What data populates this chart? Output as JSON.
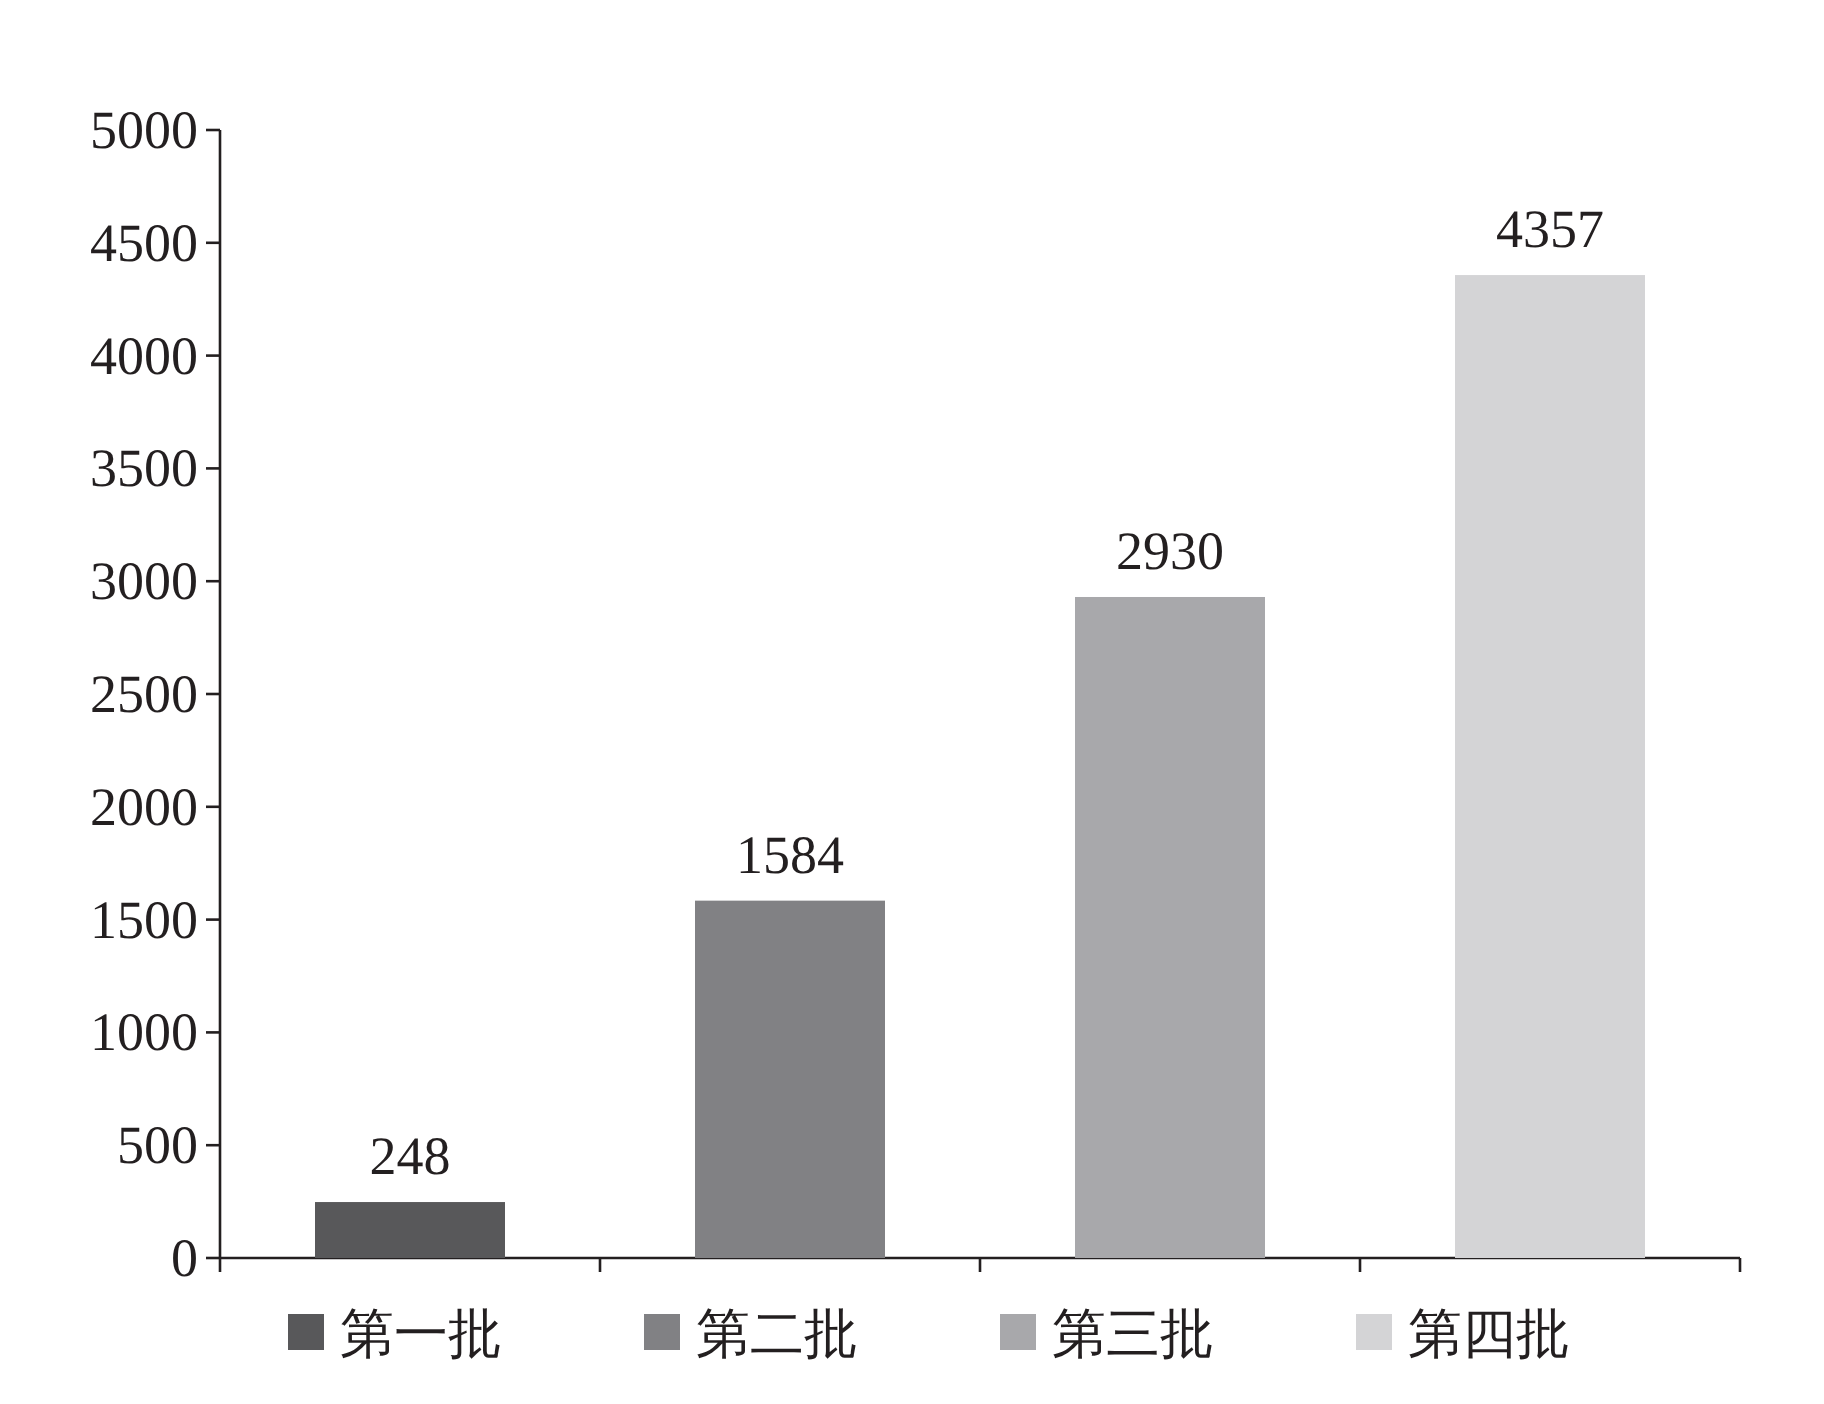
{
  "chart_data": {
    "type": "bar",
    "categories": [
      null,
      null,
      null,
      null
    ],
    "series": [
      {
        "name": "第一批",
        "color": "#58585a",
        "values": [
          248,
          null,
          null,
          null
        ]
      },
      {
        "name": "第二批",
        "color": "#818184",
        "values": [
          null,
          1584,
          null,
          null
        ]
      },
      {
        "name": "第三批",
        "color": "#a8a8ab",
        "values": [
          null,
          null,
          2930,
          null
        ]
      },
      {
        "name": "第四批",
        "color": "#d4d4d6",
        "values": [
          null,
          null,
          null,
          4357
        ]
      }
    ],
    "ylim": [
      0,
      5000
    ],
    "yticks": [
      0,
      500,
      1000,
      1500,
      2000,
      2500,
      3000,
      3500,
      4000,
      4500,
      5000
    ],
    "data_labels": true,
    "legend": "bottom"
  }
}
